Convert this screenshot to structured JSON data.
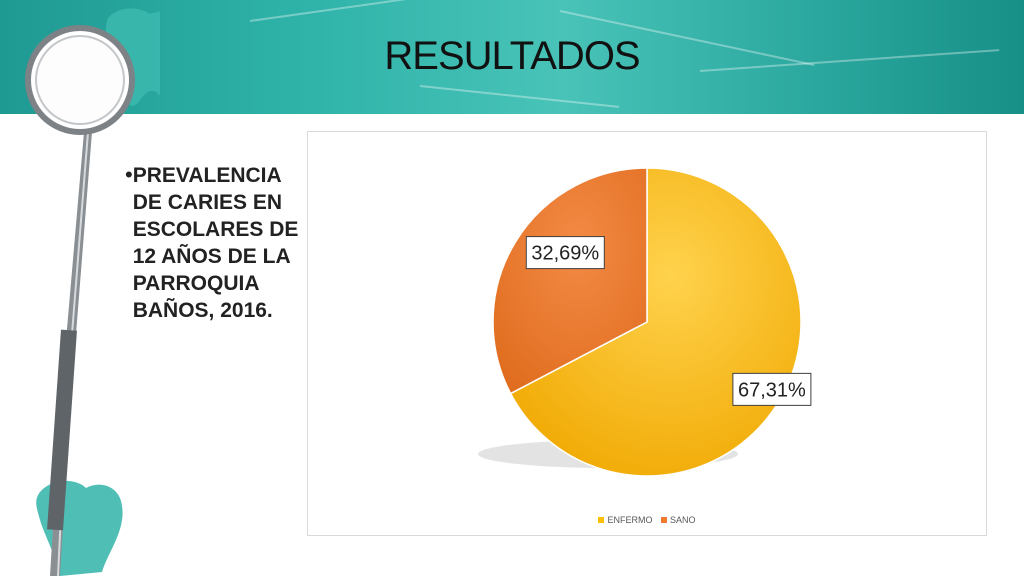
{
  "slide": {
    "title": "RESULTADOS",
    "bullet": "PREVALENCIA DE CARIES EN ESCOLARES DE 12 AÑOS DE LA PARROQUIA BAÑOS, 2016."
  },
  "colors": {
    "banner": "#2fb3a9",
    "enfermo": "#ffc000",
    "sano": "#ed7d31"
  },
  "icons": [
    "dental-mirror-icon",
    "tooth-icon"
  ],
  "chart_data": {
    "type": "pie",
    "categories": [
      "ENFERMO",
      "SANO"
    ],
    "values": [
      67.31,
      32.69
    ],
    "data_labels": [
      "67,31%",
      "32,69%"
    ],
    "legend": [
      "ENFERMO",
      "SANO"
    ],
    "legend_position": "bottom",
    "title": ""
  }
}
